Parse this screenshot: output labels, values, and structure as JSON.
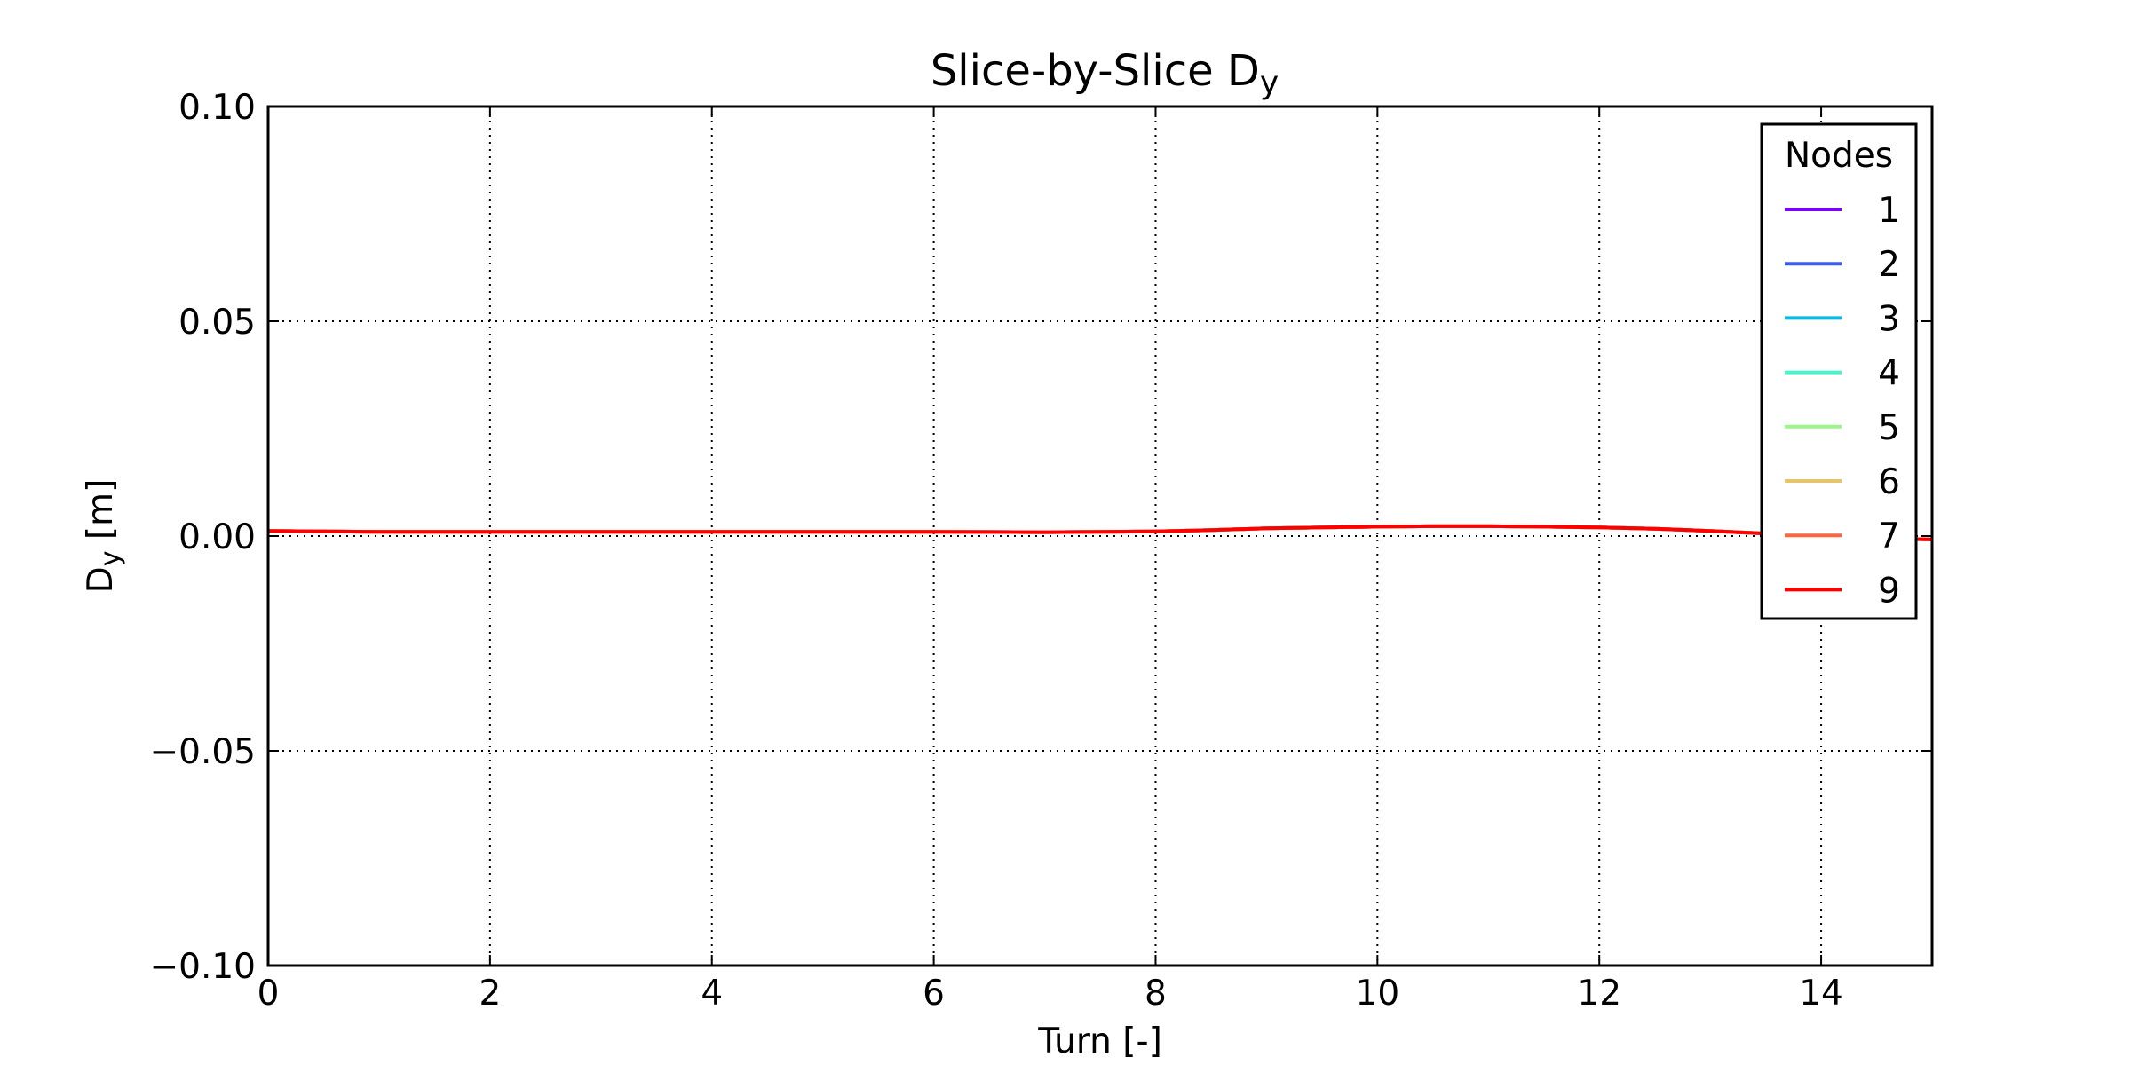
{
  "chart_data": {
    "type": "line",
    "title": "Slice-by-Slice D",
    "title_subscript": "y",
    "xlabel": "Turn [-]",
    "ylabel": "D",
    "ylabel_subscript": "y",
    "ylabel_unit": " [m]",
    "xlim": [
      0,
      15
    ],
    "ylim": [
      -0.1,
      0.1
    ],
    "xticks": [
      0,
      2,
      4,
      6,
      8,
      10,
      12,
      14
    ],
    "xtick_labels": [
      "0",
      "2",
      "4",
      "6",
      "8",
      "10",
      "12",
      "14"
    ],
    "yticks": [
      -0.1,
      -0.05,
      0.0,
      0.05,
      0.1
    ],
    "ytick_labels": [
      "−0.10",
      "−0.05",
      "0.00",
      "0.05",
      "0.10"
    ],
    "grid": true,
    "legend": {
      "title": "Nodes",
      "placement": "top-right"
    },
    "x": [
      0,
      1,
      2,
      3,
      4,
      5,
      6,
      7,
      7.5,
      8,
      8.5,
      9,
      10,
      10.5,
      11,
      11.5,
      12,
      12.5,
      13,
      13.5,
      14,
      14.5,
      15
    ],
    "series": [
      {
        "name": "1",
        "color": "#8000ff",
        "values": [
          0.0012,
          0.001,
          0.001,
          0.001,
          0.001,
          0.001,
          0.001,
          0.0009,
          0.001,
          0.0011,
          0.0014,
          0.0018,
          0.0022,
          0.0023,
          0.0023,
          0.0022,
          0.002,
          0.0017,
          0.0012,
          0.0006,
          0.0,
          -0.0005,
          -0.0008
        ]
      },
      {
        "name": "2",
        "color": "#3a5cf5",
        "values": [
          0.0012,
          0.001,
          0.001,
          0.001,
          0.001,
          0.001,
          0.001,
          0.0009,
          0.001,
          0.0011,
          0.0014,
          0.0018,
          0.0022,
          0.0023,
          0.0023,
          0.0022,
          0.002,
          0.0017,
          0.0012,
          0.0006,
          0.0,
          -0.0005,
          -0.0008
        ]
      },
      {
        "name": "3",
        "color": "#12b7de",
        "values": [
          0.0012,
          0.001,
          0.001,
          0.001,
          0.001,
          0.001,
          0.001,
          0.0009,
          0.001,
          0.0011,
          0.0014,
          0.0018,
          0.0022,
          0.0023,
          0.0023,
          0.0022,
          0.002,
          0.0017,
          0.0012,
          0.0006,
          0.0,
          -0.0005,
          -0.0008
        ]
      },
      {
        "name": "4",
        "color": "#4cf2ce",
        "values": [
          0.0012,
          0.001,
          0.001,
          0.001,
          0.001,
          0.001,
          0.001,
          0.0009,
          0.001,
          0.0011,
          0.0014,
          0.0018,
          0.0022,
          0.0023,
          0.0023,
          0.0022,
          0.002,
          0.0017,
          0.0012,
          0.0006,
          0.0,
          -0.0005,
          -0.0008
        ]
      },
      {
        "name": "5",
        "color": "#9cf58a",
        "values": [
          0.0012,
          0.001,
          0.001,
          0.001,
          0.001,
          0.001,
          0.001,
          0.0009,
          0.001,
          0.0011,
          0.0014,
          0.0018,
          0.0022,
          0.0023,
          0.0023,
          0.0022,
          0.002,
          0.0017,
          0.0012,
          0.0006,
          0.0,
          -0.0005,
          -0.0008
        ]
      },
      {
        "name": "6",
        "color": "#e6c46c",
        "values": [
          0.0012,
          0.001,
          0.001,
          0.001,
          0.001,
          0.001,
          0.001,
          0.0009,
          0.001,
          0.0011,
          0.0014,
          0.0018,
          0.0022,
          0.0023,
          0.0023,
          0.0022,
          0.002,
          0.0017,
          0.0012,
          0.0006,
          0.0,
          -0.0005,
          -0.0008
        ]
      },
      {
        "name": "7",
        "color": "#ff6640",
        "values": [
          0.0012,
          0.001,
          0.001,
          0.001,
          0.001,
          0.001,
          0.001,
          0.0009,
          0.001,
          0.0011,
          0.0014,
          0.0018,
          0.0022,
          0.0023,
          0.0023,
          0.0022,
          0.002,
          0.0017,
          0.0012,
          0.0006,
          0.0,
          -0.0005,
          -0.0008
        ]
      },
      {
        "name": "9",
        "color": "#ff0000",
        "values": [
          0.0012,
          0.001,
          0.001,
          0.001,
          0.001,
          0.001,
          0.001,
          0.0009,
          0.001,
          0.0011,
          0.0014,
          0.0018,
          0.0022,
          0.0023,
          0.0023,
          0.0022,
          0.002,
          0.0017,
          0.0012,
          0.0006,
          0.0,
          -0.0005,
          -0.0008
        ]
      }
    ]
  }
}
